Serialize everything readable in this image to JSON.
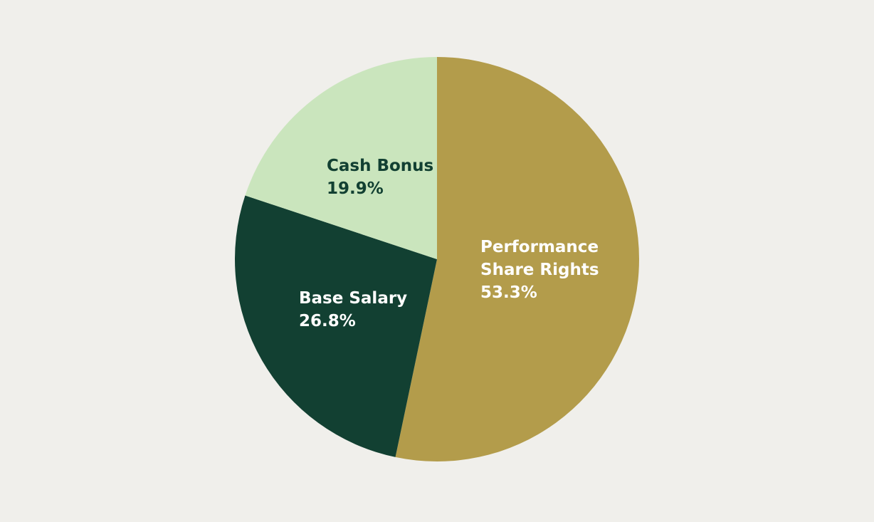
{
  "chart_data": {
    "type": "pie",
    "start_angle_deg": 0,
    "direction": "clockwise",
    "slices": [
      {
        "label": [
          "Performance",
          "Share Rights"
        ],
        "value": 53.3,
        "value_text": "53.3%",
        "color": "#b39c4b",
        "text_color": "#ffffff"
      },
      {
        "label": [
          "Base Salary"
        ],
        "value": 26.8,
        "value_text": "26.8%",
        "color": "#124032",
        "text_color": "#ffffff"
      },
      {
        "label": [
          "Cash Bonus"
        ],
        "value": 19.9,
        "value_text": "19.9%",
        "color": "#cae5bd",
        "text_color": "#124032"
      }
    ]
  }
}
